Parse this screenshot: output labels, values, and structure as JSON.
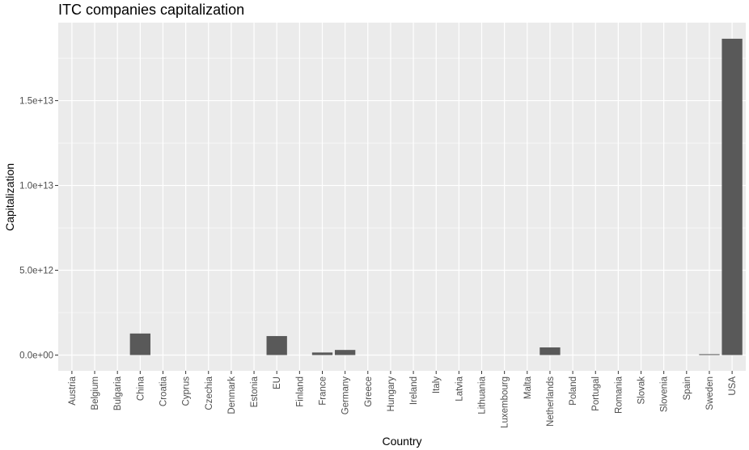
{
  "chart_data": {
    "type": "bar",
    "title": "ITC companies capitalization",
    "xlabel": "Country",
    "ylabel": "Capitalization",
    "categories": [
      "Austria",
      "Belgium",
      "Bulgaria",
      "China",
      "Croatia",
      "Cyprus",
      "Czechia",
      "Denmark",
      "Estonia",
      "EU",
      "Finland",
      "France",
      "Germany",
      "Greece",
      "Hungary",
      "Ireland",
      "Italy",
      "Latvia",
      "Lithuania",
      "Luxembourg",
      "Malta",
      "Netherlands",
      "Poland",
      "Portugal",
      "Romania",
      "Slovak",
      "Slovenia",
      "Spain",
      "Sweden",
      "USA"
    ],
    "values": [
      0,
      0,
      0,
      1270000000000.0,
      0,
      0,
      0,
      0,
      0,
      1120000000000.0,
      0,
      150000000000.0,
      300000000000.0,
      0,
      0,
      0,
      0,
      0,
      0,
      0,
      0,
      450000000000.0,
      0,
      0,
      0,
      0,
      0,
      0,
      50000000000.0,
      18650000000000.0
    ],
    "yticks": [
      0,
      5000000000000.0,
      10000000000000.0,
      15000000000000.0
    ],
    "ytick_labels": [
      "0.0e+00",
      "5.0e+12",
      "1.0e+13",
      "1.5e+13"
    ],
    "ylim": [
      -930000000000.0,
      19600000000000.0
    ],
    "grid": true,
    "legend": "none",
    "colors": {
      "bar": "#595959",
      "panel": "#ebebeb",
      "grid": "#ffffff",
      "tick": "#333333"
    }
  }
}
